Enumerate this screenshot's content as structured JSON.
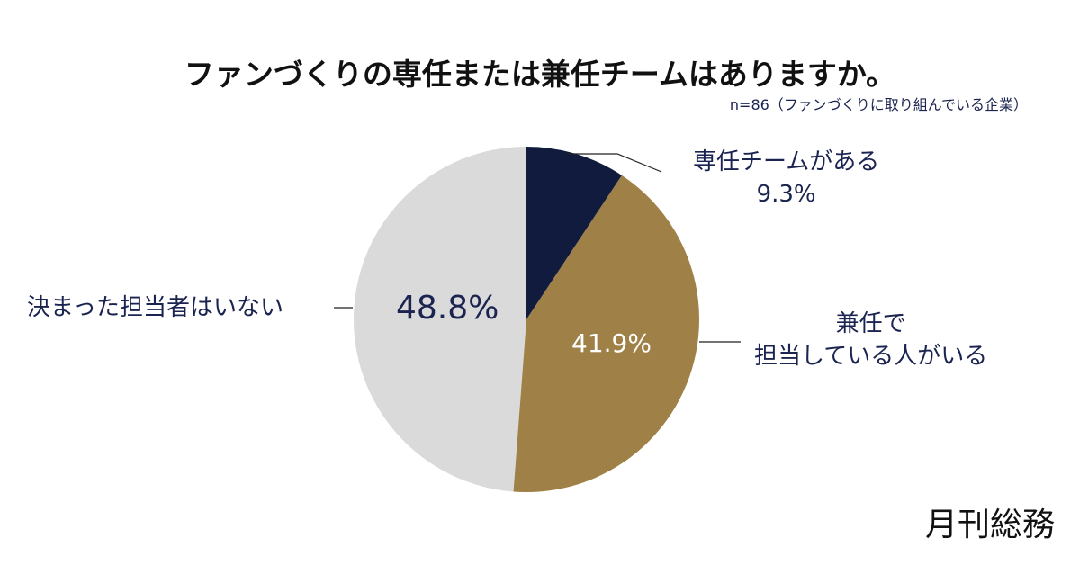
{
  "title": "ファンづくりの専任または兼任チームはありますか。",
  "note": "n=86（ファンづくりに取り組んでいる企業）",
  "logo": "月刊総務",
  "chart_data": {
    "type": "pie",
    "title": "ファンづくりの専任または兼任チームはありますか。",
    "start": "top",
    "direction": "clockwise",
    "slices": [
      {
        "label": "専任チームがある",
        "value": 9.3,
        "display": "9.3%",
        "color": "#111b3e"
      },
      {
        "label": "兼任で担当している人がいる",
        "value": 41.9,
        "display": "41.9%",
        "color": "#9f8047"
      },
      {
        "label": "決まった担当者はいない",
        "value": 48.8,
        "display": "48.8%",
        "color": "#dadada"
      }
    ]
  }
}
